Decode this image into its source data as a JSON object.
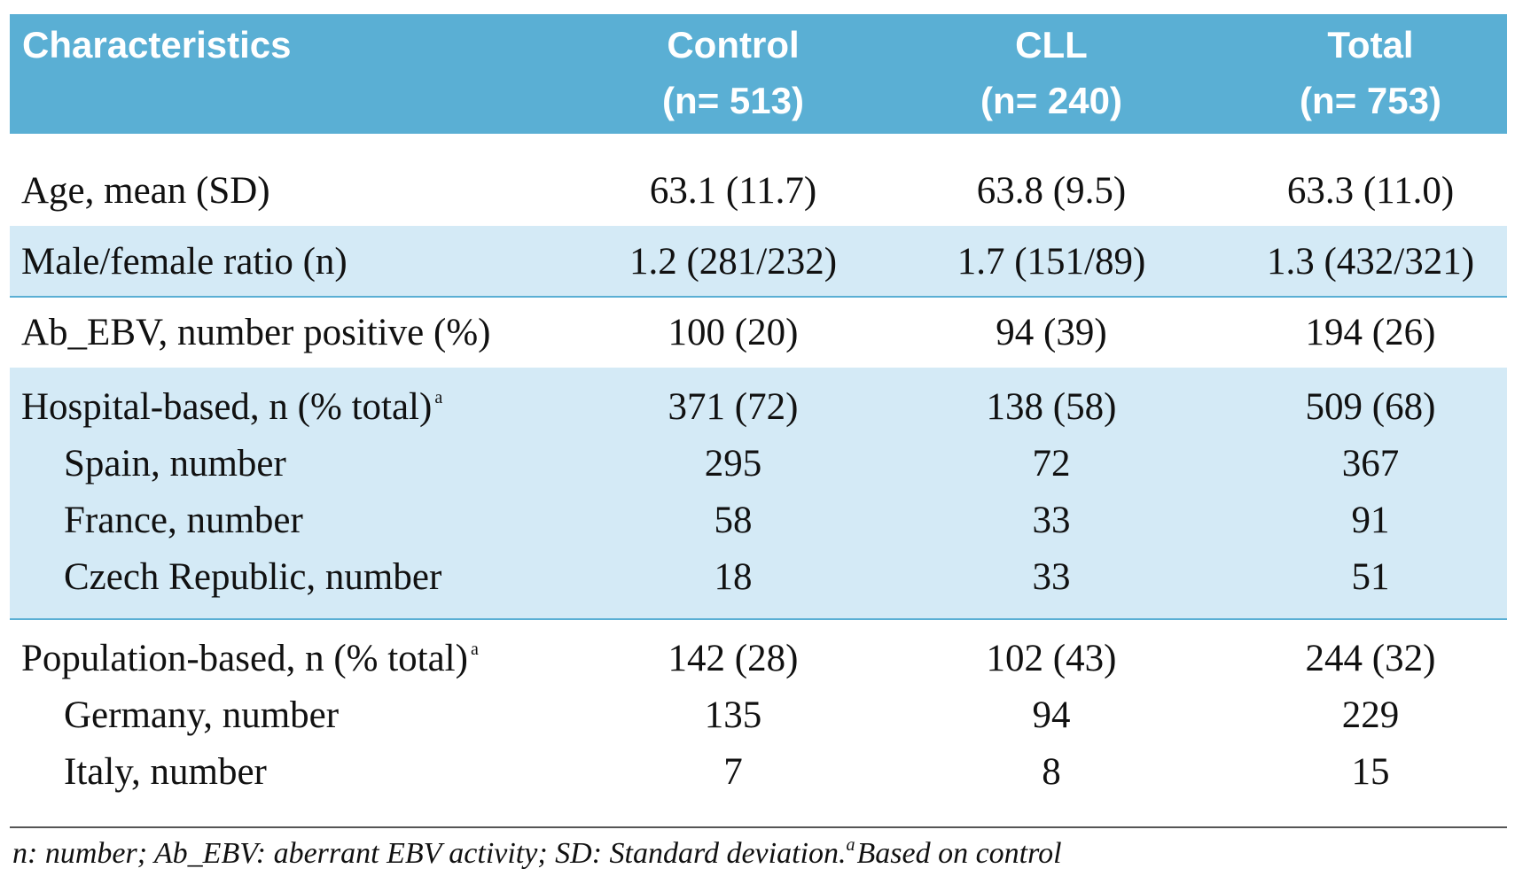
{
  "table": {
    "columns": [
      {
        "name": "Characteristics"
      },
      {
        "name": "Control",
        "n": "(n= 513)"
      },
      {
        "name": "CLL",
        "n": "(n= 240)"
      },
      {
        "name": "Total",
        "n": "(n= 753)"
      }
    ],
    "bands": [
      {
        "shaded": false,
        "rows": [
          {
            "cells": [
              "Age, mean (SD)",
              "63.1 (11.7)",
              "63.8 (9.5)",
              "63.3 (11.0)"
            ]
          }
        ]
      },
      {
        "shaded": true,
        "rows": [
          {
            "cells": [
              "Male/female ratio (n)",
              "1.2 (281/232)",
              "1.7 (151/89)",
              "1.3 (432/321)"
            ]
          }
        ]
      },
      {
        "shaded": false,
        "rows": [
          {
            "cells": [
              "Ab_EBV, number positive (%)",
              "100 (20)",
              "94 (39)",
              "194 (26)"
            ]
          }
        ]
      },
      {
        "shaded": true,
        "rows": [
          {
            "cells": [
              "Hospital-based, n (% total)",
              "371 (72)",
              "138 (58)",
              "509 (68)"
            ],
            "sup": "a"
          },
          {
            "cells": [
              "Spain, number",
              "295",
              "72",
              "367"
            ],
            "indent": true
          },
          {
            "cells": [
              "France, number",
              "58",
              "33",
              "91"
            ],
            "indent": true
          },
          {
            "cells": [
              "Czech Republic, number",
              "18",
              "33",
              "51"
            ],
            "indent": true
          }
        ]
      },
      {
        "shaded": false,
        "rows": [
          {
            "cells": [
              "Population-based, n (% total)",
              "142 (28)",
              "102 (43)",
              "244 (32)"
            ],
            "sup": "a"
          },
          {
            "cells": [
              "Germany, number",
              "135",
              "94",
              "229"
            ],
            "indent": true
          },
          {
            "cells": [
              "Italy, number",
              "7",
              "8",
              "15"
            ],
            "indent": true
          }
        ]
      }
    ]
  },
  "footnote": {
    "text": "n: number; Ab_EBV: aberrant EBV activity; SD: Standard deviation. ",
    "sup": "a",
    "rest": "Based on control"
  }
}
